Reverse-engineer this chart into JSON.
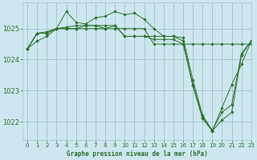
{
  "title": "Graphe pression niveau de la mer (hPa)",
  "background_color": "#cce8ee",
  "grid_color": "#a0c4c8",
  "line_color": "#2d6e2d",
  "xlim": [
    -0.5,
    23
  ],
  "ylim": [
    1021.4,
    1025.85
  ],
  "yticks": [
    1022,
    1023,
    1024,
    1025
  ],
  "xticks": [
    0,
    1,
    2,
    3,
    4,
    5,
    6,
    7,
    8,
    9,
    10,
    11,
    12,
    13,
    14,
    15,
    16,
    17,
    18,
    19,
    20,
    21,
    22,
    23
  ],
  "series": [
    {
      "x": [
        0,
        1,
        2,
        3,
        4,
        5,
        6,
        7,
        8,
        9,
        10,
        11,
        12,
        13,
        14,
        15,
        16,
        17,
        18,
        19,
        20,
        21,
        22,
        23
      ],
      "y": [
        1024.35,
        1024.85,
        1024.85,
        1025.0,
        1025.55,
        1025.2,
        1025.15,
        1025.35,
        1025.4,
        1025.55,
        1025.45,
        1025.5,
        1025.3,
        1025.0,
        1024.75,
        1024.75,
        1024.6,
        1023.15,
        1022.1,
        1021.7,
        1022.45,
        1023.2,
        1023.85,
        1024.6
      ]
    },
    {
      "x": [
        0,
        1,
        2,
        3,
        4,
        5,
        6,
        7,
        8,
        9,
        10,
        11,
        12,
        13,
        14,
        15,
        16,
        17,
        18,
        19,
        20,
        21,
        22,
        23
      ],
      "y": [
        1024.35,
        1024.85,
        1024.85,
        1025.0,
        1025.05,
        1025.1,
        1025.1,
        1025.1,
        1025.1,
        1025.1,
        1024.75,
        1024.75,
        1024.75,
        1024.65,
        1024.65,
        1024.65,
        1024.5,
        1023.2,
        1022.15,
        1021.7,
        1022.05,
        1022.3,
        1024.15,
        1024.6
      ]
    },
    {
      "x": [
        0,
        1,
        2,
        3,
        4,
        5,
        6,
        7,
        8,
        9,
        10,
        11,
        12,
        13,
        14,
        15,
        16,
        17,
        18,
        19,
        20,
        21,
        22,
        23
      ],
      "y": [
        1024.35,
        1024.6,
        1024.75,
        1025.0,
        1025.0,
        1025.0,
        1025.0,
        1025.0,
        1025.0,
        1025.0,
        1025.0,
        1025.0,
        1025.0,
        1024.5,
        1024.5,
        1024.5,
        1024.5,
        1024.5,
        1024.5,
        1024.5,
        1024.5,
        1024.5,
        1024.5,
        1024.5
      ]
    },
    {
      "x": [
        0,
        1,
        2,
        3,
        4,
        5,
        6,
        7,
        8,
        9,
        10,
        11,
        12,
        13,
        14,
        15,
        16,
        17,
        18,
        19,
        20,
        21,
        22,
        23
      ],
      "y": [
        1024.35,
        1024.85,
        1024.9,
        1025.0,
        1025.0,
        1025.0,
        1025.1,
        1025.1,
        1025.0,
        1025.1,
        1024.75,
        1024.75,
        1024.75,
        1024.75,
        1024.75,
        1024.75,
        1024.7,
        1023.35,
        1022.2,
        1021.72,
        1022.3,
        1022.55,
        1024.2,
        1024.6
      ]
    }
  ]
}
